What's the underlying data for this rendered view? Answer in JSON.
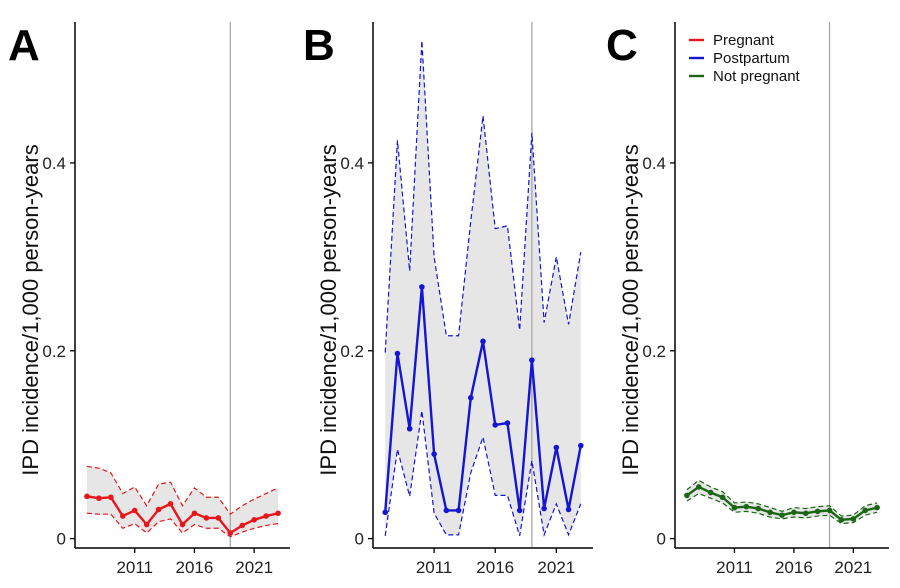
{
  "chart_data": [
    {
      "panel": "A",
      "type": "line",
      "ylabel": "IPD incidence/1,000 person-years",
      "x_ticks": [
        2011,
        2016,
        2021
      ],
      "y_ticks": [
        "0",
        "0.2",
        "0.4"
      ],
      "y_tick_values": [
        0,
        0.2,
        0.4
      ],
      "xlim": [
        2006,
        2024
      ],
      "ylim": [
        -0.01,
        0.55
      ],
      "vline_x": 2019,
      "color": "#e8161b",
      "x": [
        2007,
        2008,
        2009,
        2010,
        2011,
        2012,
        2013,
        2014,
        2015,
        2016,
        2017,
        2018,
        2019,
        2020,
        2021,
        2022,
        2023
      ],
      "values": [
        0.045,
        0.043,
        0.044,
        0.024,
        0.03,
        0.015,
        0.031,
        0.037,
        0.015,
        0.027,
        0.022,
        0.022,
        0.006,
        0.014,
        0.02,
        0.024,
        0.027
      ],
      "lower": [
        0.027,
        0.026,
        0.026,
        0.011,
        0.016,
        0.006,
        0.018,
        0.021,
        0.006,
        0.015,
        0.011,
        0.011,
        0.002,
        0.007,
        0.011,
        0.014,
        0.016
      ],
      "upper": [
        0.077,
        0.075,
        0.07,
        0.048,
        0.055,
        0.035,
        0.058,
        0.06,
        0.035,
        0.054,
        0.044,
        0.044,
        0.026,
        0.035,
        0.042,
        0.048,
        0.054
      ]
    },
    {
      "panel": "B",
      "type": "line",
      "ylabel": "IPD incidence/1,000 person-years",
      "x_ticks": [
        2011,
        2016,
        2021
      ],
      "y_ticks": [
        "0",
        "0.2",
        "0.4"
      ],
      "y_tick_values": [
        0,
        0.2,
        0.4
      ],
      "xlim": [
        2006,
        2024
      ],
      "ylim": [
        -0.01,
        0.55
      ],
      "vline_x": 2019,
      "color": "#1515d4",
      "x": [
        2007,
        2008,
        2009,
        2010,
        2011,
        2012,
        2013,
        2014,
        2015,
        2016,
        2017,
        2018,
        2019,
        2020,
        2021,
        2022,
        2023
      ],
      "values": [
        0.028,
        0.197,
        0.117,
        0.268,
        0.09,
        0.03,
        0.03,
        0.15,
        0.21,
        0.121,
        0.123,
        0.03,
        0.19,
        0.032,
        0.097,
        0.031,
        0.099
      ],
      "lower": [
        0.003,
        0.095,
        0.045,
        0.136,
        0.027,
        0.004,
        0.004,
        0.07,
        0.108,
        0.046,
        0.046,
        0.003,
        0.083,
        0.004,
        0.037,
        0.004,
        0.037
      ],
      "upper": [
        0.198,
        0.424,
        0.285,
        0.53,
        0.3,
        0.216,
        0.216,
        0.338,
        0.45,
        0.33,
        0.333,
        0.222,
        0.432,
        0.23,
        0.3,
        0.228,
        0.305
      ]
    },
    {
      "panel": "C",
      "type": "line",
      "ylabel": "IPD incidence/1,000 person-years",
      "x_ticks": [
        2011,
        2016,
        2021
      ],
      "y_ticks": [
        "0",
        "0.2",
        "0.4"
      ],
      "y_tick_values": [
        0,
        0.2,
        0.4
      ],
      "xlim": [
        2006,
        2024
      ],
      "ylim": [
        -0.01,
        0.55
      ],
      "vline_x": 2019,
      "color": "#1a6614",
      "legend": {
        "placement": "top-left",
        "entries": [
          {
            "name": "Pregnant",
            "color": "#e8161b"
          },
          {
            "name": "Postpartum",
            "color": "#1515d4"
          },
          {
            "name": "Not pregnant",
            "color": "#1a6614"
          }
        ]
      },
      "x": [
        2007,
        2008,
        2009,
        2010,
        2011,
        2012,
        2013,
        2014,
        2015,
        2016,
        2017,
        2018,
        2019,
        2020,
        2021,
        2022,
        2023
      ],
      "values": [
        0.046,
        0.055,
        0.049,
        0.044,
        0.033,
        0.034,
        0.032,
        0.028,
        0.025,
        0.028,
        0.027,
        0.029,
        0.03,
        0.02,
        0.021,
        0.03,
        0.033
      ],
      "lower": [
        0.04,
        0.048,
        0.043,
        0.038,
        0.028,
        0.029,
        0.027,
        0.023,
        0.021,
        0.023,
        0.022,
        0.024,
        0.025,
        0.016,
        0.017,
        0.025,
        0.028
      ],
      "upper": [
        0.052,
        0.062,
        0.055,
        0.05,
        0.038,
        0.039,
        0.037,
        0.033,
        0.029,
        0.033,
        0.032,
        0.034,
        0.035,
        0.024,
        0.025,
        0.035,
        0.038
      ]
    }
  ]
}
